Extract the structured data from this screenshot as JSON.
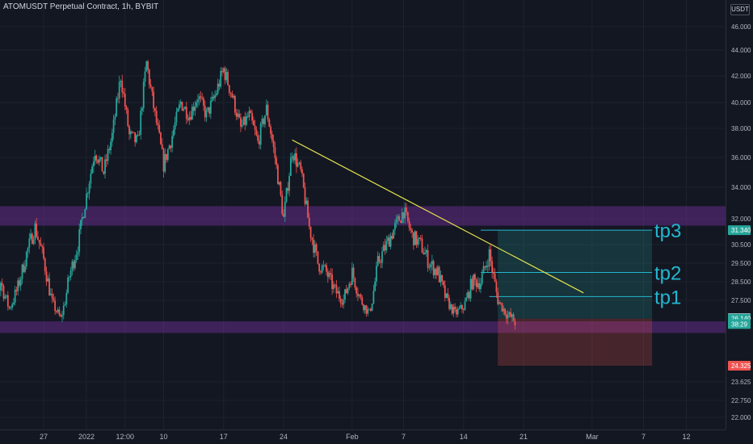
{
  "header": {
    "title": "ATOMUSDT Perpetual Contract, 1h, BYBIT"
  },
  "price_scale": {
    "currency": "USDT"
  },
  "chart_data": {
    "type": "candlestick",
    "symbol": "ATOMUSDT Perpetual Contract",
    "interval": "1h",
    "exchange": "BYBIT",
    "y_ticks": [
      {
        "label": "46.000",
        "value": 46.0
      },
      {
        "label": "44.000",
        "value": 44.0
      },
      {
        "label": "42.000",
        "value": 42.0
      },
      {
        "label": "40.000",
        "value": 40.0
      },
      {
        "label": "38.000",
        "value": 38.0
      },
      {
        "label": "36.000",
        "value": 36.0
      },
      {
        "label": "34.000",
        "value": 34.0
      },
      {
        "label": "32.000",
        "value": 32.0
      },
      {
        "label": "30.500",
        "value": 30.5
      },
      {
        "label": "29.500",
        "value": 29.5
      },
      {
        "label": "28.500",
        "value": 28.5
      },
      {
        "label": "27.500",
        "value": 27.5
      },
      {
        "label": "23.625",
        "value": 23.625
      },
      {
        "label": "22.750",
        "value": 22.75
      },
      {
        "label": "22.000",
        "value": 22.0
      }
    ],
    "x_ticks": [
      {
        "label": "27",
        "date": "2021-12-27"
      },
      {
        "label": "2022",
        "date": "2022-01-01"
      },
      {
        "label": "12:00",
        "date": "2022-01-05T12:00"
      },
      {
        "label": "10",
        "date": "2022-01-10"
      },
      {
        "label": "17",
        "date": "2022-01-17"
      },
      {
        "label": "24",
        "date": "2022-01-24"
      },
      {
        "label": "Feb",
        "date": "2022-02-01"
      },
      {
        "label": "7",
        "date": "2022-02-07"
      },
      {
        "label": "14",
        "date": "2022-02-14"
      },
      {
        "label": "21",
        "date": "2022-02-21"
      },
      {
        "label": "Mar",
        "date": "2022-03-01"
      },
      {
        "label": "7",
        "date": "2022-03-07"
      },
      {
        "label": "12",
        "date": "2022-03-12"
      }
    ],
    "price_badges": [
      {
        "label": "31.340",
        "value": 31.34,
        "color": "#26a69a",
        "dark_text": false
      },
      {
        "label": "26.170",
        "value": 26.17,
        "color": "#b2b5be",
        "dark_text": true
      },
      {
        "label": "26.140",
        "value": 26.14,
        "color": "#26a69a",
        "dark_text": false
      },
      {
        "label": "38:29",
        "value": 25.86,
        "color": "#26a69a",
        "dark_text": false
      },
      {
        "label": "24.325",
        "value": 24.325,
        "color": "#ef5350",
        "dark_text": false
      }
    ],
    "zones": [
      {
        "name": "resistance-zone",
        "from": 31.6,
        "to": 32.8,
        "color": "#6a2d8f"
      },
      {
        "name": "support-zone",
        "from": 25.4,
        "to": 26.0,
        "color": "#6a2d8f"
      }
    ],
    "trendline": {
      "start": {
        "date": "2022-01-25",
        "price": 37.2
      },
      "end": {
        "date": "2022-02-28",
        "price": 27.9
      },
      "color": "#e6e34d"
    },
    "position": {
      "start_date": "2022-02-18",
      "end_date": "2022-03-08",
      "entry": 26.14,
      "target": 31.34,
      "stop": 24.325,
      "profit_color": "#26a69a",
      "loss_color": "#ef5350"
    },
    "targets": [
      {
        "label": "tp1",
        "price": 27.7,
        "from_date": "2022-02-17"
      },
      {
        "label": "tp2",
        "price": 29.0,
        "from_date": "2022-02-16"
      },
      {
        "label": "tp3",
        "price": 31.34,
        "from_date": "2022-02-16"
      }
    ],
    "price_path": [
      {
        "date": "2021-12-20",
        "price": 23.0
      },
      {
        "date": "2021-12-21",
        "price": 26.5
      },
      {
        "date": "2021-12-22",
        "price": 28.5
      },
      {
        "date": "2021-12-23",
        "price": 26.9
      },
      {
        "date": "2021-12-24",
        "price": 28.2
      },
      {
        "date": "2021-12-25",
        "price": 30.0
      },
      {
        "date": "2021-12-26",
        "price": 31.5
      },
      {
        "date": "2021-12-27",
        "price": 29.7
      },
      {
        "date": "2021-12-28",
        "price": 27.3
      },
      {
        "date": "2021-12-29",
        "price": 26.1
      },
      {
        "date": "2021-12-30",
        "price": 28.8
      },
      {
        "date": "2021-12-31",
        "price": 30.5
      },
      {
        "date": "2022-01-01",
        "price": 33.5
      },
      {
        "date": "2022-01-02",
        "price": 36.5
      },
      {
        "date": "2022-01-03",
        "price": 35.0
      },
      {
        "date": "2022-01-04",
        "price": 37.5
      },
      {
        "date": "2022-01-05",
        "price": 42.0
      },
      {
        "date": "2022-01-06",
        "price": 37.5
      },
      {
        "date": "2022-01-07",
        "price": 37.0
      },
      {
        "date": "2022-01-08",
        "price": 43.0
      },
      {
        "date": "2022-01-09",
        "price": 39.0
      },
      {
        "date": "2022-01-10",
        "price": 35.5
      },
      {
        "date": "2022-01-11",
        "price": 37.5
      },
      {
        "date": "2022-01-12",
        "price": 40.0
      },
      {
        "date": "2022-01-13",
        "price": 39.0
      },
      {
        "date": "2022-01-14",
        "price": 40.5
      },
      {
        "date": "2022-01-15",
        "price": 39.0
      },
      {
        "date": "2022-01-16",
        "price": 40.5
      },
      {
        "date": "2022-01-17",
        "price": 42.5
      },
      {
        "date": "2022-01-18",
        "price": 40.5
      },
      {
        "date": "2022-01-19",
        "price": 38.0
      },
      {
        "date": "2022-01-20",
        "price": 39.0
      },
      {
        "date": "2022-01-21",
        "price": 37.0
      },
      {
        "date": "2022-01-22",
        "price": 39.5
      },
      {
        "date": "2022-01-23",
        "price": 36.0
      },
      {
        "date": "2022-01-24",
        "price": 32.0
      },
      {
        "date": "2022-01-25",
        "price": 36.5
      },
      {
        "date": "2022-01-26",
        "price": 35.0
      },
      {
        "date": "2022-01-27",
        "price": 31.5
      },
      {
        "date": "2022-01-28",
        "price": 29.5
      },
      {
        "date": "2022-01-29",
        "price": 29.0
      },
      {
        "date": "2022-01-30",
        "price": 28.0
      },
      {
        "date": "2022-01-31",
        "price": 27.5
      },
      {
        "date": "2022-02-01",
        "price": 29.0
      },
      {
        "date": "2022-02-02",
        "price": 27.5
      },
      {
        "date": "2022-02-03",
        "price": 26.5
      },
      {
        "date": "2022-02-04",
        "price": 29.5
      },
      {
        "date": "2022-02-05",
        "price": 30.5
      },
      {
        "date": "2022-02-06",
        "price": 31.5
      },
      {
        "date": "2022-02-07",
        "price": 32.5
      },
      {
        "date": "2022-02-08",
        "price": 31.0
      },
      {
        "date": "2022-02-09",
        "price": 30.5
      },
      {
        "date": "2022-02-10",
        "price": 29.5
      },
      {
        "date": "2022-02-11",
        "price": 29.0
      },
      {
        "date": "2022-02-12",
        "price": 27.5
      },
      {
        "date": "2022-02-13",
        "price": 26.5
      },
      {
        "date": "2022-02-14",
        "price": 27.0
      },
      {
        "date": "2022-02-15",
        "price": 28.5
      },
      {
        "date": "2022-02-16",
        "price": 28.5
      },
      {
        "date": "2022-02-17",
        "price": 30.0
      },
      {
        "date": "2022-02-18",
        "price": 27.5
      },
      {
        "date": "2022-02-19",
        "price": 26.5
      },
      {
        "date": "2022-02-20",
        "price": 26.0
      }
    ]
  }
}
